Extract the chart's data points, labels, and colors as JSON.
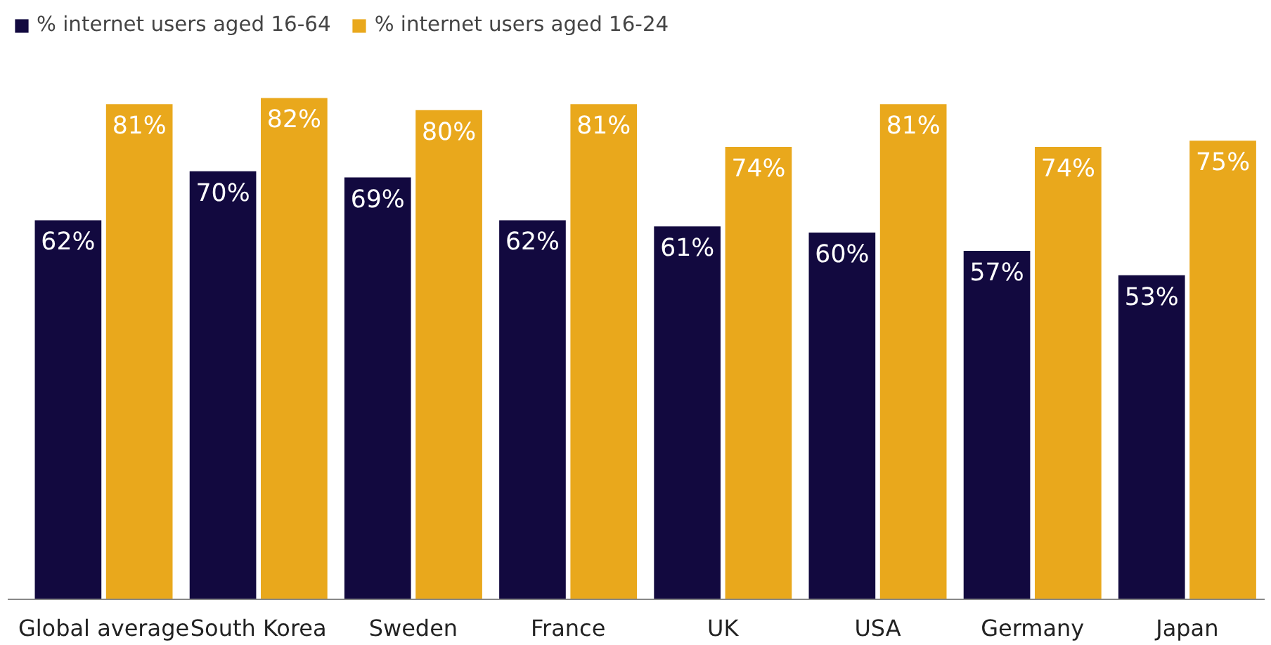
{
  "chart_data": {
    "type": "bar",
    "categories": [
      "Global average",
      "South Korea",
      "Sweden",
      "France",
      "UK",
      "USA",
      "Germany",
      "Japan"
    ],
    "series": [
      {
        "name": "% internet users aged 16-64",
        "color": "#12093f",
        "values": [
          62,
          70,
          69,
          62,
          61,
          60,
          57,
          53
        ],
        "value_labels": [
          "62%",
          "70%",
          "69%",
          "62%",
          "61%",
          "60%",
          "57%",
          "53%"
        ]
      },
      {
        "name": "% internet users aged 16-24",
        "color": "#e9a81c",
        "values": [
          81,
          82,
          80,
          81,
          74,
          81,
          74,
          75
        ],
        "value_labels": [
          "81%",
          "82%",
          "80%",
          "81%",
          "74%",
          "81%",
          "74%",
          "75%"
        ]
      }
    ],
    "grid": false,
    "legend": "top left",
    "tick_labels": "x"
  }
}
